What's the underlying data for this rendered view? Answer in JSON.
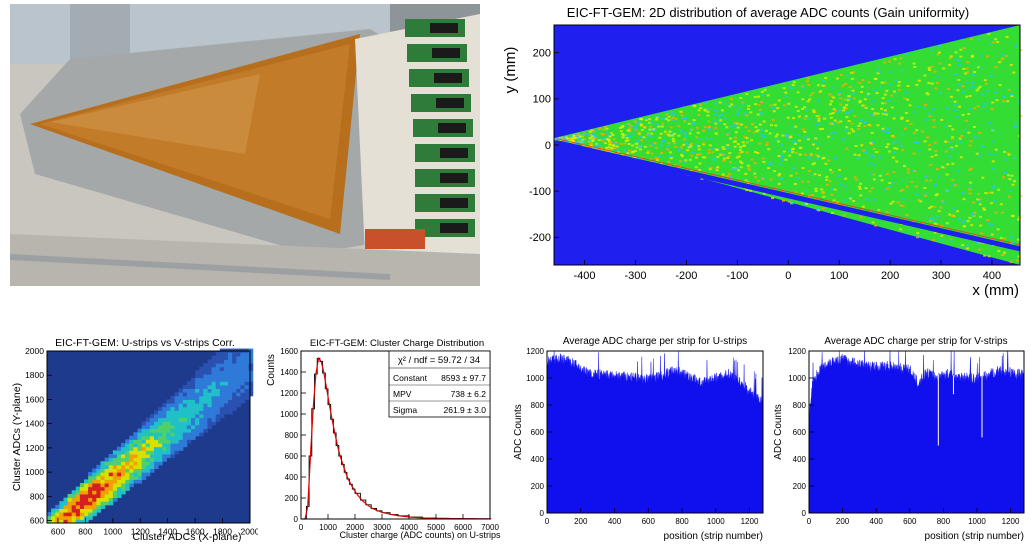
{
  "photo": {
    "subject": "triangular GEM detector photograph"
  },
  "chart_data": [
    {
      "id": "map2d",
      "type": "heatmap",
      "title": "EIC-FT-GEM: 2D distribution of average ADC counts (Gain uniformity)",
      "xlabel": "x (mm)",
      "ylabel": "y (mm)",
      "xlim": [
        -460,
        455
      ],
      "ylim": [
        -260,
        260
      ],
      "xticks": [
        -400,
        -300,
        -200,
        -100,
        0,
        100,
        200,
        300,
        400
      ],
      "yticks": [
        -200,
        -100,
        0,
        100,
        200
      ],
      "background_color": "#1f1ff0",
      "colors": {
        "high": "#e8f000",
        "mid": "#33dd33",
        "low": "#25c6ff"
      },
      "triangle_apex": [
        -460,
        15
      ],
      "triangle_right_edge": [
        -255,
        255
      ],
      "dead_strip_line": {
        "from": [
          -455,
          5
        ],
        "to": [
          455,
          -225
        ]
      }
    },
    {
      "id": "corr",
      "type": "heatmap",
      "title": "EIC-FT-GEM: U-strips vs V-strips Corr.",
      "xlabel": "Cluster ADCs (X-plane)",
      "ylabel": "Cluster ADCs (Y-plane)",
      "xlim": [
        520,
        2000
      ],
      "ylim": [
        580,
        2000
      ],
      "xticks": [
        600,
        800,
        1000,
        1200,
        1400,
        1600,
        1800,
        2000
      ],
      "yticks": [
        600,
        800,
        1000,
        1200,
        1400,
        1600,
        1800,
        2000
      ],
      "band": {
        "slope": 0.97,
        "intercept": -10,
        "peak": [
          800,
          760
        ]
      },
      "background_color": "#1e3a8c"
    },
    {
      "id": "charge",
      "type": "line",
      "title": "EIC-FT-GEM: Cluster Charge Distribution",
      "xlabel": "Cluster charge (ADC counts) on U-strips",
      "ylabel": "Counts",
      "xlim": [
        0,
        7000
      ],
      "ylim": [
        0,
        1600
      ],
      "xticks": [
        0,
        1000,
        2000,
        3000,
        4000,
        5000,
        6000,
        7000
      ],
      "yticks": [
        0,
        200,
        400,
        600,
        800,
        1000,
        1200,
        1400,
        1600
      ],
      "x": [
        0,
        100,
        200,
        300,
        400,
        500,
        600,
        700,
        800,
        900,
        1000,
        1100,
        1200,
        1300,
        1400,
        1500,
        1600,
        1700,
        1800,
        1900,
        2000,
        2200,
        2400,
        2600,
        2800,
        3000,
        3300,
        3600,
        4000,
        4500,
        5000,
        5500,
        6000,
        6500,
        7000
      ],
      "values": [
        0,
        0,
        120,
        600,
        1050,
        1380,
        1530,
        1500,
        1390,
        1240,
        1090,
        950,
        820,
        700,
        600,
        520,
        445,
        380,
        330,
        285,
        245,
        180,
        135,
        100,
        78,
        60,
        42,
        30,
        18,
        10,
        6,
        4,
        3,
        2,
        1
      ],
      "fit_color": "#dd0000",
      "stats": {
        "header": "χ² / ndf = 59.72 / 34",
        "rows": [
          {
            "name": "Constant",
            "value": "8593 ± 97.7"
          },
          {
            "name": "MPV",
            "value": "738 ± 6.2"
          },
          {
            "name": "Sigma",
            "value": "261.9 ± 3.0"
          }
        ]
      }
    },
    {
      "id": "ustrips",
      "type": "bar",
      "title": "Average ADC charge per strip for U-strips",
      "xlabel": "position (strip number)",
      "ylabel": "ADC Counts",
      "xlim": [
        0,
        1280
      ],
      "ylim": [
        0,
        1200
      ],
      "xticks": [
        0,
        200,
        400,
        600,
        800,
        1000,
        1200
      ],
      "yticks": [
        0,
        200,
        400,
        600,
        800,
        1000,
        1200
      ],
      "profile_x": [
        0,
        80,
        150,
        250,
        350,
        450,
        520,
        600,
        680,
        760,
        840,
        920,
        1000,
        1080,
        1150,
        1220,
        1280
      ],
      "profile_y": [
        1120,
        1150,
        1110,
        1030,
        1020,
        1010,
        1000,
        990,
        1020,
        1060,
        1010,
        960,
        1000,
        1030,
        960,
        880,
        820
      ],
      "bar_color": "#1010ee"
    },
    {
      "id": "vstrips",
      "type": "bar",
      "title": "Average ADC charge per strip for V-strips",
      "xlabel": "position (strip number)",
      "ylabel": "ADC Counts",
      "xlim": [
        0,
        1280
      ],
      "ylim": [
        0,
        1200
      ],
      "xticks": [
        0,
        200,
        400,
        600,
        800,
        1000,
        1200
      ],
      "yticks": [
        0,
        200,
        400,
        600,
        800,
        1000,
        1200
      ],
      "profile_x": [
        0,
        20,
        60,
        120,
        200,
        300,
        400,
        500,
        600,
        650,
        700,
        760,
        820,
        900,
        1000,
        1060,
        1120,
        1200,
        1280
      ],
      "profile_y": [
        700,
        950,
        1060,
        1120,
        1140,
        1100,
        1080,
        1090,
        1060,
        960,
        1040,
        1000,
        1030,
        1010,
        990,
        1020,
        1050,
        1040,
        1020
      ],
      "dips": [
        [
          770,
          500
        ],
        [
          1030,
          560
        ],
        [
          860,
          880
        ]
      ],
      "bar_color": "#1010ee"
    }
  ]
}
